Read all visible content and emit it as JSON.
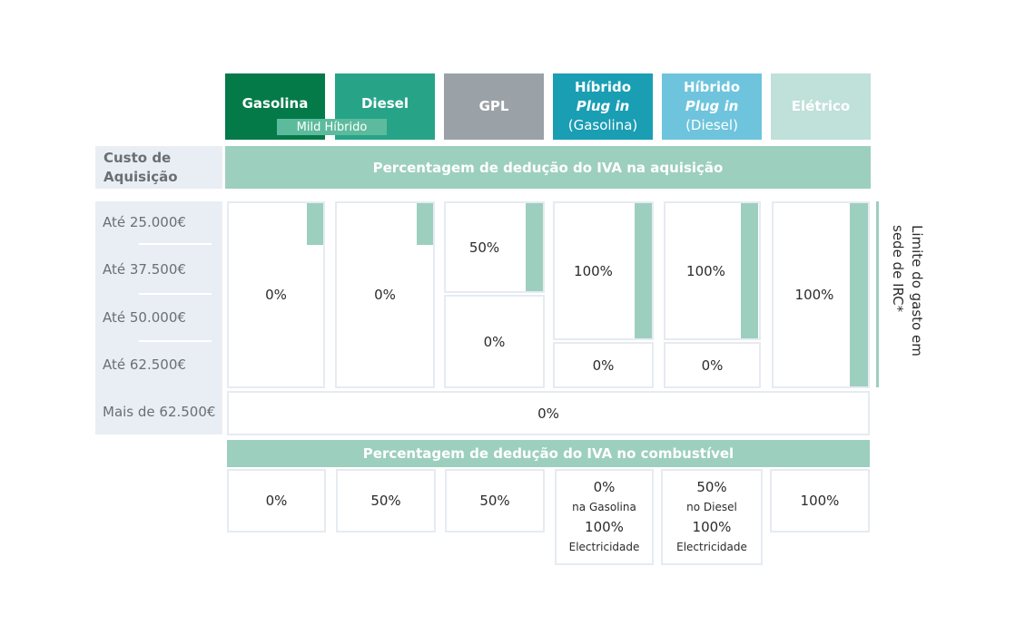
{
  "fuel_types": [
    {
      "line1": "Gasolina",
      "line2": "",
      "line3": "",
      "color": "#047a49"
    },
    {
      "line1": "Diesel",
      "line2": "",
      "line3": "",
      "color": "#27a487"
    },
    {
      "line1": "GPL",
      "line2": "",
      "line3": "",
      "color": "#9aa2a8"
    },
    {
      "line1": "Híbrido",
      "line2": "Plug in",
      "line3": "(Gasolina)",
      "color": "#1a9eb4"
    },
    {
      "line1": "Híbrido",
      "line2": "Plug in",
      "line3": "(Diesel)",
      "color": "#6ec4dc"
    },
    {
      "line1": "Elétrico",
      "line2": "",
      "line3": "",
      "color": "#c0e0da"
    }
  ],
  "mild_hybrid_label": "Mild Híbrido",
  "cost_title_line1": "Custo de",
  "cost_title_line2": "Aquisição",
  "acquisition_band": "Percentagem de dedução do IVA na aquisição",
  "cost_rows": [
    "Até 25.000€",
    "Até 37.500€",
    "Até 50.000€",
    "Até 62.500€",
    "Mais de 62.500€"
  ],
  "acquisition_cells": {
    "gasolina": "0%",
    "diesel": "0%",
    "gpl_upper": "50%",
    "gpl_lower": "0%",
    "phev_gas_upper": "100%",
    "phev_gas_lower": "0%",
    "phev_diesel_upper": "100%",
    "phev_diesel_lower": "0%",
    "eletrico": "100%",
    "above_limit": "0%"
  },
  "irc_limit_line1": "Limite do gasto em",
  "irc_limit_line2": "sede de IRC*",
  "fuel_band": "Percentagem de dedução do IVA no combustível",
  "fuel_cells": {
    "gasolina": "0%",
    "diesel": "50%",
    "gpl": "50%",
    "phev_gas": {
      "v1": "0%",
      "t1": "na Gasolina",
      "v2": "100%",
      "t2": "Electricidade"
    },
    "phev_diesel": {
      "v1": "50%",
      "t1": "no Diesel",
      "v2": "100%",
      "t2": "Electricidade"
    },
    "eletrico": "100%"
  },
  "colors": {
    "band": "#9dcfbe",
    "left_column": "#e9eef5",
    "cell_border": "#e6ebf2"
  }
}
